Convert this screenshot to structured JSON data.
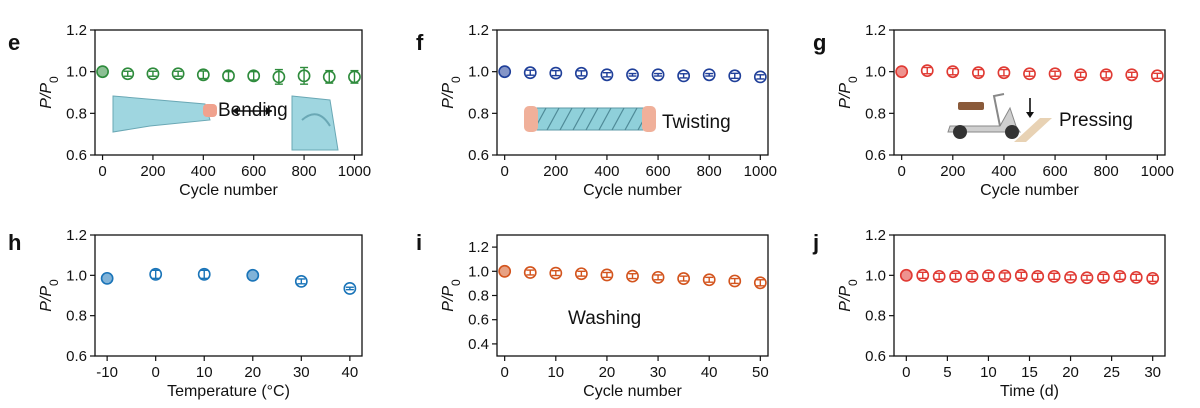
{
  "chart_data": [
    {
      "type": "scatter",
      "panel_label": "e",
      "xlabel": "Cycle number",
      "ylabel": "P/P0",
      "ylabel_parts": {
        "main": "P/P",
        "sub": "0"
      },
      "xlim": [
        -30,
        1030
      ],
      "ylim": [
        0.6,
        1.2
      ],
      "xticks": [
        0,
        200,
        400,
        600,
        800,
        1000
      ],
      "yticks": [
        0.6,
        0.8,
        1.0,
        1.2
      ],
      "ytick_labels": [
        "0.6",
        "0.8",
        "1.0",
        "1.2"
      ],
      "annotation": "Bending",
      "color": "#2e8b3c",
      "points": [
        {
          "x": 0,
          "y": 1.0,
          "err": 0.0
        },
        {
          "x": 100,
          "y": 0.99,
          "err": 0.012
        },
        {
          "x": 200,
          "y": 0.99,
          "err": 0.012
        },
        {
          "x": 300,
          "y": 0.99,
          "err": 0.012
        },
        {
          "x": 400,
          "y": 0.985,
          "err": 0.018
        },
        {
          "x": 500,
          "y": 0.98,
          "err": 0.02
        },
        {
          "x": 600,
          "y": 0.98,
          "err": 0.02
        },
        {
          "x": 700,
          "y": 0.975,
          "err": 0.035
        },
        {
          "x": 800,
          "y": 0.98,
          "err": 0.04
        },
        {
          "x": 900,
          "y": 0.975,
          "err": 0.03
        },
        {
          "x": 1000,
          "y": 0.975,
          "err": 0.03
        }
      ]
    },
    {
      "type": "scatter",
      "panel_label": "f",
      "xlabel": "Cycle number",
      "ylabel": "P/P0",
      "ylabel_parts": {
        "main": "P/P",
        "sub": "0"
      },
      "xlim": [
        -30,
        1030
      ],
      "ylim": [
        0.6,
        1.2
      ],
      "xticks": [
        0,
        200,
        400,
        600,
        800,
        1000
      ],
      "yticks": [
        0.6,
        0.8,
        1.0,
        1.2
      ],
      "ytick_labels": [
        "0.6",
        "0.8",
        "1.0",
        "1.2"
      ],
      "annotation": "Twisting",
      "color": "#1f3f99",
      "points": [
        {
          "x": 0,
          "y": 1.0,
          "err": 0.0
        },
        {
          "x": 100,
          "y": 0.995,
          "err": 0.012
        },
        {
          "x": 200,
          "y": 0.993,
          "err": 0.012
        },
        {
          "x": 300,
          "y": 0.992,
          "err": 0.012
        },
        {
          "x": 400,
          "y": 0.985,
          "err": 0.01
        },
        {
          "x": 500,
          "y": 0.985,
          "err": 0.006
        },
        {
          "x": 600,
          "y": 0.985,
          "err": 0.006
        },
        {
          "x": 700,
          "y": 0.98,
          "err": 0.01
        },
        {
          "x": 800,
          "y": 0.985,
          "err": 0.006
        },
        {
          "x": 900,
          "y": 0.98,
          "err": 0.012
        },
        {
          "x": 1000,
          "y": 0.975,
          "err": 0.01
        }
      ]
    },
    {
      "type": "scatter",
      "panel_label": "g",
      "xlabel": "Cycle number",
      "ylabel": "P/P0",
      "ylabel_parts": {
        "main": "P/P",
        "sub": "0"
      },
      "xlim": [
        -30,
        1030
      ],
      "ylim": [
        0.6,
        1.2
      ],
      "xticks": [
        0,
        200,
        400,
        600,
        800,
        1000
      ],
      "yticks": [
        0.6,
        0.8,
        1.0,
        1.2
      ],
      "ytick_labels": [
        "0.6",
        "0.8",
        "1.0",
        "1.2"
      ],
      "annotation": "Pressing",
      "color": "#e03a33",
      "points": [
        {
          "x": 0,
          "y": 1.0,
          "err": 0.0
        },
        {
          "x": 100,
          "y": 1.005,
          "err": 0.015
        },
        {
          "x": 200,
          "y": 1.0,
          "err": 0.015
        },
        {
          "x": 300,
          "y": 0.995,
          "err": 0.015
        },
        {
          "x": 400,
          "y": 0.995,
          "err": 0.015
        },
        {
          "x": 500,
          "y": 0.99,
          "err": 0.012
        },
        {
          "x": 600,
          "y": 0.99,
          "err": 0.012
        },
        {
          "x": 700,
          "y": 0.985,
          "err": 0.012
        },
        {
          "x": 800,
          "y": 0.985,
          "err": 0.015
        },
        {
          "x": 900,
          "y": 0.985,
          "err": 0.012
        },
        {
          "x": 1000,
          "y": 0.98,
          "err": 0.012
        }
      ]
    },
    {
      "type": "scatter",
      "panel_label": "h",
      "xlabel": "Temperature (°C)",
      "ylabel": "P/P0",
      "ylabel_parts": {
        "main": "P/P",
        "sub": "0"
      },
      "xlim": [
        -12.5,
        42.5
      ],
      "ylim": [
        0.6,
        1.2
      ],
      "xticks": [
        -10,
        0,
        10,
        20,
        30,
        40
      ],
      "yticks": [
        0.6,
        0.8,
        1.0,
        1.2
      ],
      "ytick_labels": [
        "0.6",
        "0.8",
        "1.0",
        "1.2"
      ],
      "annotation": "",
      "color": "#1a74b8",
      "points": [
        {
          "x": -10,
          "y": 0.985,
          "err": 0.01
        },
        {
          "x": 0,
          "y": 1.005,
          "err": 0.02
        },
        {
          "x": 10,
          "y": 1.005,
          "err": 0.02
        },
        {
          "x": 20,
          "y": 1.0,
          "err": 0.0
        },
        {
          "x": 30,
          "y": 0.97,
          "err": 0.012
        },
        {
          "x": 40,
          "y": 0.935,
          "err": 0.006
        }
      ]
    },
    {
      "type": "scatter",
      "panel_label": "i",
      "xlabel": "Cycle number",
      "ylabel": "P/P0",
      "ylabel_parts": {
        "main": "P/P",
        "sub": "0"
      },
      "xlim": [
        -1.5,
        51.5
      ],
      "ylim": [
        0.3,
        1.3
      ],
      "xticks": [
        0,
        10,
        20,
        30,
        40,
        50
      ],
      "yticks": [
        0.4,
        0.6,
        0.8,
        1.0,
        1.2
      ],
      "ytick_labels": [
        "0.4",
        "0.6",
        "0.8",
        "1.0",
        "1.2"
      ],
      "annotation": "Washing",
      "color": "#d3541d",
      "points": [
        {
          "x": 0,
          "y": 1.0,
          "err": 0.0
        },
        {
          "x": 5,
          "y": 0.99,
          "err": 0.02
        },
        {
          "x": 10,
          "y": 0.985,
          "err": 0.02
        },
        {
          "x": 15,
          "y": 0.98,
          "err": 0.02
        },
        {
          "x": 20,
          "y": 0.97,
          "err": 0.02
        },
        {
          "x": 25,
          "y": 0.96,
          "err": 0.02
        },
        {
          "x": 30,
          "y": 0.95,
          "err": 0.02
        },
        {
          "x": 35,
          "y": 0.94,
          "err": 0.02
        },
        {
          "x": 40,
          "y": 0.93,
          "err": 0.02
        },
        {
          "x": 45,
          "y": 0.92,
          "err": 0.02
        },
        {
          "x": 50,
          "y": 0.905,
          "err": 0.025
        }
      ]
    },
    {
      "type": "scatter",
      "panel_label": "j",
      "xlabel": "Time (d)",
      "ylabel": "P/P0",
      "ylabel_parts": {
        "main": "P/P",
        "sub": "0"
      },
      "xlim": [
        -1.5,
        31.5
      ],
      "ylim": [
        0.6,
        1.2
      ],
      "xticks": [
        0,
        5,
        10,
        15,
        20,
        25,
        30
      ],
      "yticks": [
        0.6,
        0.8,
        1.0,
        1.2
      ],
      "ytick_labels": [
        "0.6",
        "0.8",
        "1.0",
        "1.2"
      ],
      "annotation": "",
      "color": "#e03a33",
      "points": [
        {
          "x": 0,
          "y": 1.0,
          "err": 0.0
        },
        {
          "x": 2,
          "y": 1.0,
          "err": 0.015
        },
        {
          "x": 4,
          "y": 0.995,
          "err": 0.015
        },
        {
          "x": 6,
          "y": 0.995,
          "err": 0.015
        },
        {
          "x": 8,
          "y": 0.995,
          "err": 0.015
        },
        {
          "x": 10,
          "y": 0.998,
          "err": 0.015
        },
        {
          "x": 12,
          "y": 0.997,
          "err": 0.015
        },
        {
          "x": 14,
          "y": 1.0,
          "err": 0.015
        },
        {
          "x": 16,
          "y": 0.995,
          "err": 0.015
        },
        {
          "x": 18,
          "y": 0.995,
          "err": 0.015
        },
        {
          "x": 20,
          "y": 0.99,
          "err": 0.012
        },
        {
          "x": 22,
          "y": 0.988,
          "err": 0.012
        },
        {
          "x": 24,
          "y": 0.99,
          "err": 0.015
        },
        {
          "x": 26,
          "y": 0.995,
          "err": 0.015
        },
        {
          "x": 28,
          "y": 0.99,
          "err": 0.015
        },
        {
          "x": 30,
          "y": 0.985,
          "err": 0.015
        }
      ]
    }
  ]
}
